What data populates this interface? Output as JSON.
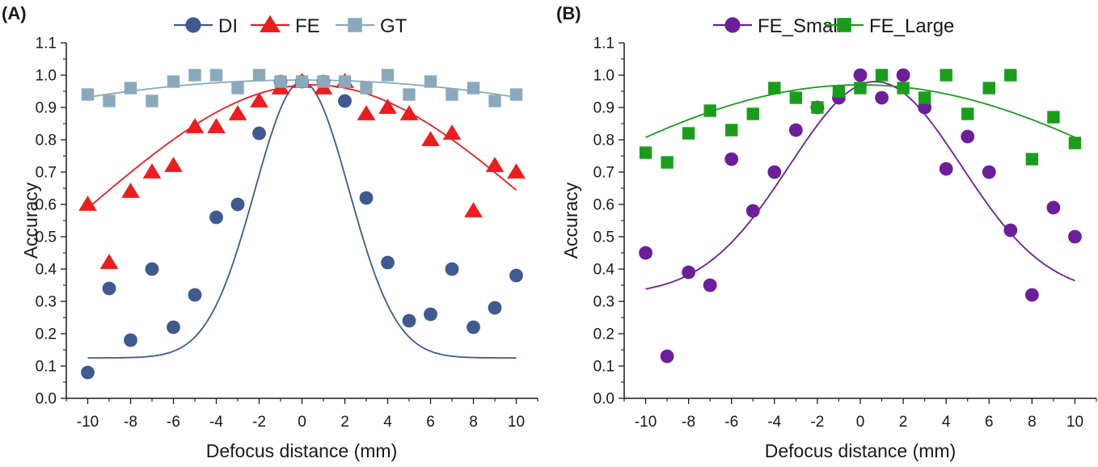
{
  "chart_data": [
    {
      "type": "scatter",
      "panel_label": "(A)",
      "xlabel": "Defocus distance (mm)",
      "ylabel": "Accuracy",
      "xlim": [
        -11,
        11
      ],
      "ylim": [
        0,
        1.1
      ],
      "xticks": [
        -10,
        -8,
        -6,
        -4,
        -2,
        0,
        2,
        4,
        6,
        8,
        10
      ],
      "xtick_labels": [
        "-10",
        "-8",
        "-6",
        "-4",
        "-2",
        "0",
        "2",
        "4",
        "6",
        "8",
        "10"
      ],
      "yticks": [
        0,
        0.1,
        0.2,
        0.3,
        0.4,
        0.5,
        0.6,
        0.7,
        0.8,
        0.9,
        1.0,
        1.1
      ],
      "ytick_labels": [
        "0.0",
        "0.1",
        "0.2",
        "0.3",
        "0.4",
        "0.5",
        "0.6",
        "0.7",
        "0.8",
        "0.9",
        "1.0",
        "1.1"
      ],
      "legend_position": "top",
      "x": [
        -10,
        -9,
        -8,
        -7,
        -6,
        -5,
        -4,
        -3,
        -2,
        -1,
        0,
        1,
        2,
        3,
        4,
        5,
        6,
        7,
        8,
        9,
        10
      ],
      "series": [
        {
          "name": "DI",
          "marker": "circle",
          "color": "#3e5a8f",
          "values": [
            0.08,
            0.34,
            0.18,
            0.4,
            0.22,
            0.32,
            0.56,
            0.6,
            0.82,
            0.98,
            0.98,
            0.98,
            0.92,
            0.62,
            0.42,
            0.24,
            0.26,
            0.4,
            0.22,
            0.28,
            0.38
          ],
          "fit": {
            "model": "gaussian",
            "base": 0.125,
            "amplitude": 0.855,
            "center": 0.0,
            "sigma": 2.2
          }
        },
        {
          "name": "FE",
          "marker": "triangle",
          "color": "#ee1c1c",
          "values": [
            0.6,
            0.42,
            0.64,
            0.7,
            0.72,
            0.84,
            0.84,
            0.88,
            0.92,
            0.96,
            0.98,
            0.96,
            0.98,
            0.88,
            0.9,
            0.88,
            0.8,
            0.82,
            0.58,
            0.72,
            0.7
          ],
          "fit": {
            "model": "gaussian",
            "base": 0.0,
            "amplitude": 0.97,
            "center": 0.5,
            "sigma": 10.5
          }
        },
        {
          "name": "GT",
          "marker": "square",
          "color": "#8aaabb",
          "values": [
            0.94,
            0.92,
            0.96,
            0.92,
            0.98,
            1.0,
            1.0,
            0.96,
            1.0,
            0.98,
            0.98,
            0.98,
            0.98,
            0.96,
            1.0,
            0.94,
            0.98,
            0.94,
            0.96,
            0.92,
            0.94
          ],
          "fit": {
            "model": "gaussian",
            "base": 0.0,
            "amplitude": 0.985,
            "center": 0.0,
            "sigma": 30
          }
        }
      ]
    },
    {
      "type": "scatter",
      "panel_label": "(B)",
      "xlabel": "Defocus distance (mm)",
      "ylabel": "Accuracy",
      "xlim": [
        -11,
        11
      ],
      "ylim": [
        0,
        1.1
      ],
      "xticks": [
        -10,
        -8,
        -6,
        -4,
        -2,
        0,
        2,
        4,
        6,
        8,
        10
      ],
      "xtick_labels": [
        "-10",
        "-8",
        "-6",
        "-4",
        "-2",
        "0",
        "2",
        "4",
        "6",
        "8",
        "10"
      ],
      "yticks": [
        0,
        0.1,
        0.2,
        0.3,
        0.4,
        0.5,
        0.6,
        0.7,
        0.8,
        0.9,
        1.0,
        1.1
      ],
      "ytick_labels": [
        "0.0",
        "0.1",
        "0.2",
        "0.3",
        "0.4",
        "0.5",
        "0.6",
        "0.7",
        "0.8",
        "0.9",
        "1.0",
        "1.1"
      ],
      "legend_position": "top",
      "x": [
        -10,
        -9,
        -8,
        -7,
        -6,
        -5,
        -4,
        -3,
        -2,
        -1,
        0,
        1,
        2,
        3,
        4,
        5,
        6,
        7,
        8,
        9,
        10
      ],
      "series": [
        {
          "name": "FE_Small",
          "marker": "circle",
          "color": "#6d1e9a",
          "values": [
            0.45,
            0.13,
            0.39,
            0.35,
            0.74,
            0.58,
            0.7,
            0.83,
            0.9,
            0.93,
            1.0,
            0.93,
            1.0,
            0.9,
            0.71,
            0.81,
            0.7,
            0.52,
            0.32,
            0.59,
            0.5
          ],
          "fit": {
            "model": "gaussian",
            "base": 0.32,
            "amplitude": 0.66,
            "center": 0.7,
            "sigma": 4.0
          }
        },
        {
          "name": "FE_Large",
          "marker": "square",
          "color": "#1a9e1a",
          "values": [
            0.76,
            0.73,
            0.82,
            0.89,
            0.83,
            0.88,
            0.96,
            0.93,
            0.9,
            0.95,
            0.96,
            1.0,
            0.96,
            0.93,
            1.0,
            0.88,
            0.96,
            1.0,
            0.74,
            0.87,
            0.79
          ],
          "fit": {
            "model": "gaussian",
            "base": 0.0,
            "amplitude": 0.97,
            "center": 0.0,
            "sigma": 16.5
          }
        }
      ]
    }
  ]
}
